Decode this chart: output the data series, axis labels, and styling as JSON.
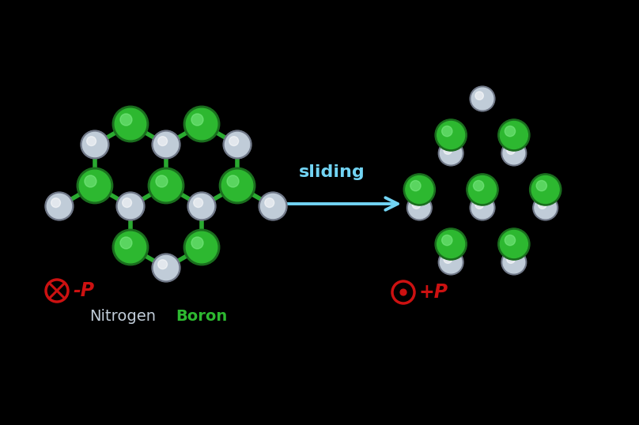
{
  "background_color": "#000000",
  "boron_color": "#2db830",
  "boron_edge_color": "#1a6e1e",
  "boron_highlight": "#80ee88",
  "nitrogen_color": "#c0ccd8",
  "nitrogen_edge_color": "#707888",
  "nitrogen_highlight": "#ffffff",
  "bond_color": "#2aaa30",
  "bond_lw": 4.0,
  "arrow_color": "#72d4f4",
  "sliding_color": "#72d4f4",
  "polar_color": "#cc1111",
  "sliding_text": "sliding",
  "left_label_P": "-P",
  "right_label_P": "+P",
  "N_label": "Nitrogen",
  "B_label": "Boron"
}
